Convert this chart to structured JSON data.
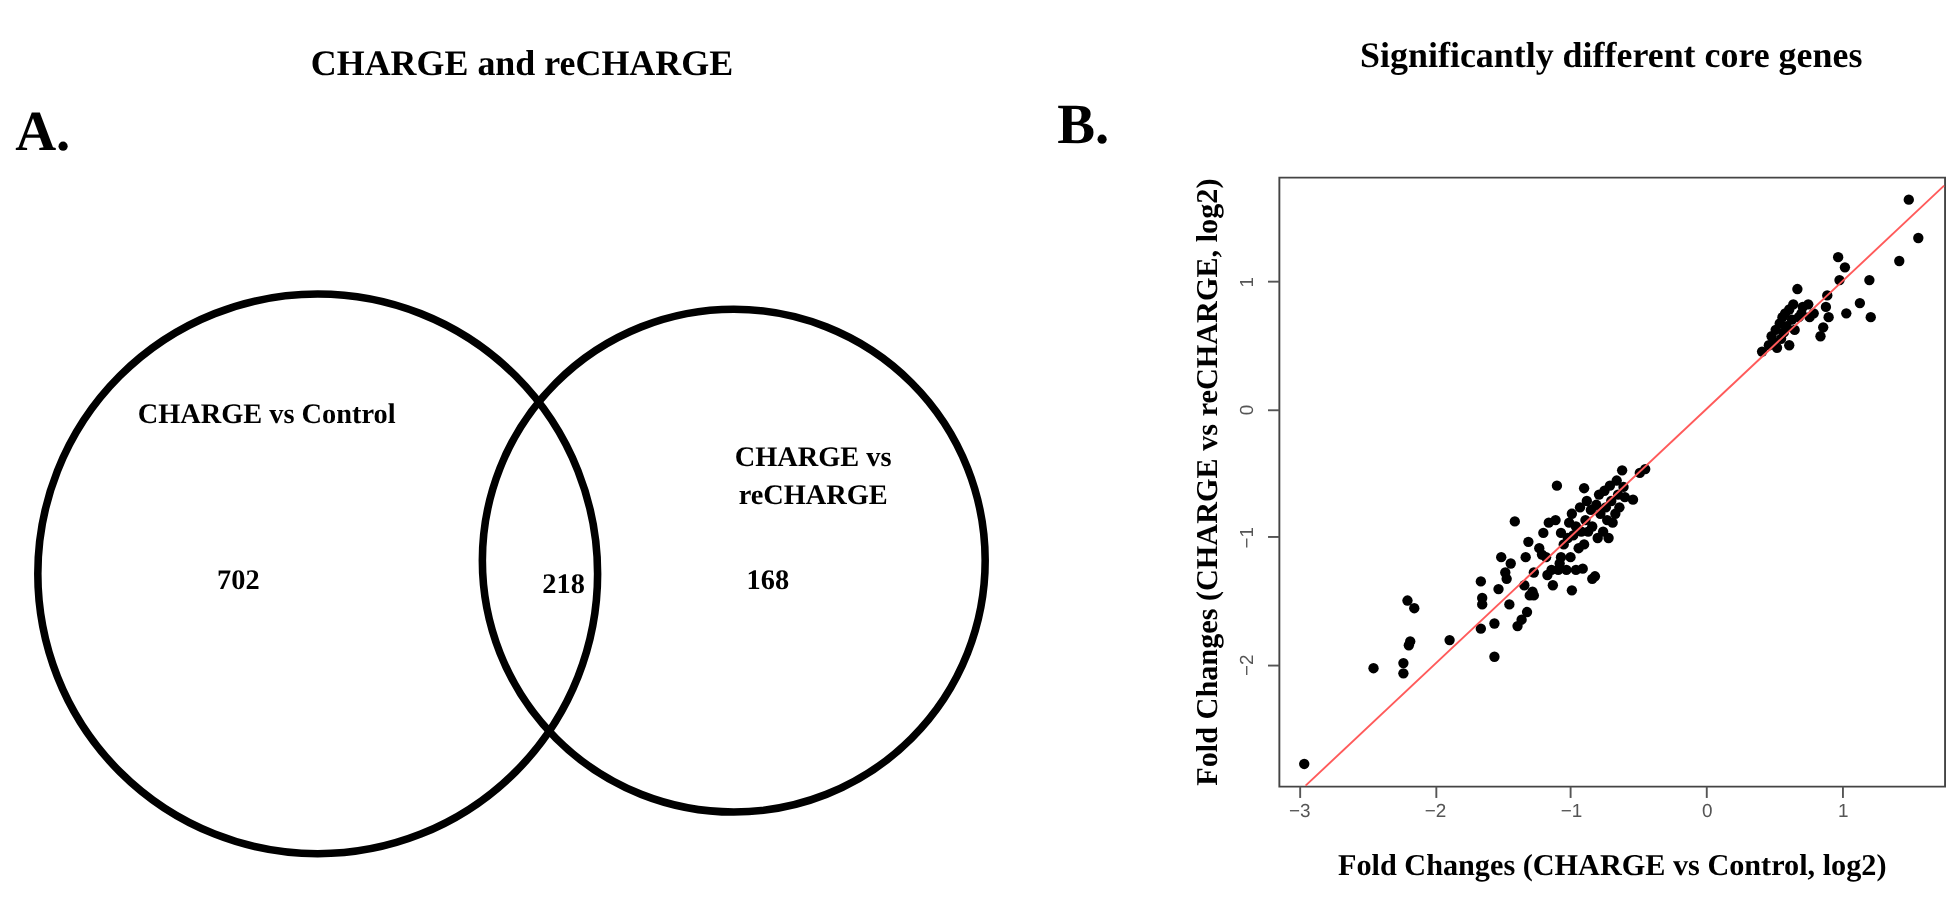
{
  "chart_data": [
    {
      "type": "other",
      "title": "CHARGE and reCHARGE",
      "annotations": [
        "A."
      ],
      "categories": [
        "CHARGE  vs Control",
        null,
        "CHARGE vs reCHARGE"
      ],
      "values": [
        702,
        218,
        168
      ],
      "data_labels": true
    },
    {
      "type": "scatter",
      "title": "Significantly different core genes",
      "annotations": [
        "B."
      ],
      "xlabel": "Fold Changes (CHARGE vs Control, log2)",
      "ylabel": "Fold Changes (CHARGE vs reCHARGE, log2)",
      "xlim": [
        -3.15,
        1.75
      ],
      "ylim": [
        -2.95,
        1.82
      ],
      "xticks": [
        -3,
        -2,
        -1,
        0,
        1
      ],
      "yticks": [
        -2,
        -1,
        0,
        1
      ],
      "grid": false,
      "series": [
        {
          "type": "scatter",
          "color": "#000000",
          "marker": "circle",
          "x": [
            -2.96,
            -2.45,
            -2.23,
            -2.23,
            -2.19,
            -2.18,
            -2.2,
            -2.15,
            -1.89,
            -1.66,
            -1.65,
            -1.65,
            -1.66,
            -1.56,
            -1.56,
            -1.53,
            -1.51,
            -1.48,
            -1.47,
            -1.45,
            -1.44,
            -1.41,
            -1.39,
            -1.36,
            -1.34,
            -1.33,
            -1.32,
            -1.31,
            -1.3,
            -1.28,
            -1.27,
            -1.27,
            -1.23,
            -1.21,
            -1.2,
            -1.18,
            -1.17,
            -1.16,
            -1.14,
            -1.13,
            -1.11,
            -1.1,
            -1.09,
            -1.08,
            -1.07,
            -1.07,
            -1.05,
            -1.03,
            -1.02,
            -1.01,
            -1.0,
            -0.99,
            -0.99,
            -0.98,
            -0.96,
            -0.96,
            -0.94,
            -0.93,
            -0.92,
            -0.91,
            -0.9,
            -0.9,
            -0.89,
            -0.88,
            -0.87,
            -0.85,
            -0.84,
            -0.84,
            -0.82,
            -0.81,
            -0.8,
            -0.79,
            -0.78,
            -0.76,
            -0.75,
            -0.74,
            -0.73,
            -0.72,
            -0.71,
            -0.7,
            -0.69,
            -0.67,
            -0.66,
            -0.65,
            -0.64,
            -0.62,
            -0.61,
            -0.6,
            -0.54,
            -0.49,
            -0.45,
            0.41,
            0.46,
            0.48,
            0.5,
            0.51,
            0.52,
            0.54,
            0.55,
            0.56,
            0.57,
            0.58,
            0.59,
            0.61,
            0.61,
            0.63,
            0.64,
            0.65,
            0.67,
            0.68,
            0.7,
            0.71,
            0.75,
            0.76,
            0.79,
            0.84,
            0.86,
            0.88,
            0.89,
            0.9,
            0.97,
            0.98,
            1.02,
            1.03,
            1.13,
            1.2,
            1.21,
            1.42,
            1.49,
            1.56
          ],
          "values": [
            -2.78,
            -2.03,
            -1.99,
            -2.07,
            -1.85,
            -1.82,
            -1.5,
            -1.56,
            -1.81,
            -1.35,
            -1.48,
            -1.53,
            -1.72,
            -1.94,
            -1.68,
            -1.41,
            -1.16,
            -1.28,
            -1.33,
            -1.53,
            -1.21,
            -0.88,
            -1.7,
            -1.65,
            -1.38,
            -1.16,
            -1.59,
            -1.04,
            -1.46,
            -1.43,
            -1.46,
            -1.28,
            -1.09,
            -1.14,
            -0.97,
            -1.16,
            -1.3,
            -0.89,
            -1.26,
            -1.38,
            -0.87,
            -0.6,
            -1.26,
            -1.21,
            -0.97,
            -1.16,
            -1.06,
            -1.26,
            -1.01,
            -0.89,
            -1.16,
            -1.42,
            -0.82,
            -0.99,
            -1.26,
            -0.92,
            -1.09,
            -0.77,
            -0.96,
            -1.25,
            -0.62,
            -1.06,
            -0.87,
            -0.72,
            -0.96,
            -0.79,
            -0.92,
            -1.33,
            -1.31,
            -0.75,
            -1.01,
            -0.67,
            -0.82,
            -0.96,
            -0.64,
            -0.77,
            -0.87,
            -1.01,
            -0.6,
            -0.72,
            -0.89,
            -0.82,
            -0.56,
            -0.67,
            -0.77,
            -0.48,
            -0.61,
            -0.69,
            -0.71,
            -0.5,
            -0.47,
            0.45,
            0.5,
            0.57,
            0.52,
            0.62,
            0.48,
            0.67,
            0.55,
            0.72,
            0.6,
            0.75,
            0.65,
            0.5,
            0.78,
            0.7,
            0.82,
            0.62,
            0.94,
            0.72,
            0.75,
            0.8,
            0.82,
            0.72,
            0.75,
            0.57,
            0.64,
            0.8,
            0.89,
            0.72,
            1.19,
            1.01,
            1.11,
            0.75,
            0.83,
            1.01,
            0.72,
            1.16,
            1.64,
            1.34
          ]
        },
        {
          "type": "line",
          "color": "#ff5a5a",
          "marker": "none",
          "x": [
            -2.95,
            1.75
          ],
          "values": [
            -2.95,
            1.75
          ]
        }
      ]
    }
  ]
}
